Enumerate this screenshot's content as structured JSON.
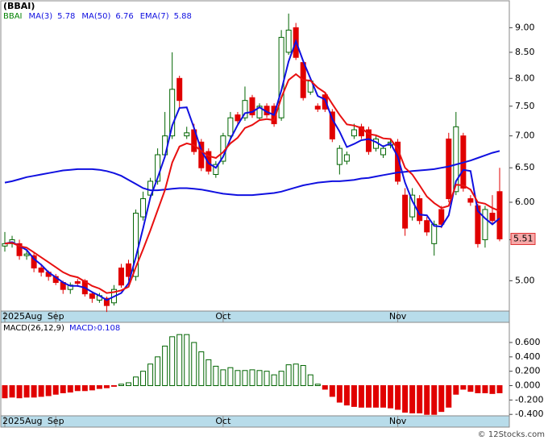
{
  "chart_data": [
    {
      "type": "candlestick",
      "title": "(BBAI)",
      "symbol": "BBAI",
      "symbol_color": "#008000",
      "categories": [
        "2025Aug",
        null,
        null,
        null,
        null,
        null,
        null,
        "Sep",
        null,
        null,
        null,
        null,
        null,
        null,
        null,
        null,
        null,
        null,
        null,
        null,
        null,
        null,
        null,
        null,
        null,
        null,
        null,
        null,
        null,
        null,
        "Oct",
        null,
        null,
        null,
        null,
        null,
        null,
        null,
        null,
        null,
        null,
        null,
        null,
        null,
        null,
        null,
        null,
        null,
        null,
        null,
        null,
        null,
        null,
        null,
        "Nov",
        null,
        null,
        null,
        null,
        null,
        null,
        null,
        null,
        null,
        null,
        null,
        null,
        null,
        null
      ],
      "open": [
        5.42,
        5.45,
        5.45,
        5.3,
        5.3,
        5.15,
        5.1,
        5.05,
        4.98,
        4.9,
        4.99,
        5.0,
        4.85,
        4.78,
        4.8,
        4.75,
        5.15,
        5.2,
        5.05,
        5.8,
        6.1,
        6.3,
        6.7,
        7.0,
        8.0,
        7.0,
        7.1,
        6.9,
        6.75,
        6.4,
        6.6,
        7.0,
        7.35,
        7.3,
        7.65,
        7.3,
        7.5,
        7.5,
        7.3,
        8.5,
        9.0,
        8.3,
        7.75,
        7.5,
        7.7,
        7.4,
        6.55,
        6.6,
        7.0,
        7.15,
        7.1,
        6.8,
        6.7,
        6.85,
        6.9,
        6.1,
        5.8,
        6.05,
        5.75,
        5.45,
        5.9,
        6.95,
        6.15,
        7.0,
        6.05,
        5.95,
        5.5,
        5.85,
        6.15
      ],
      "high": [
        5.6,
        5.55,
        5.5,
        5.38,
        5.33,
        5.2,
        5.12,
        5.08,
        5.0,
        4.98,
        5.02,
        5.02,
        4.88,
        4.86,
        4.82,
        4.95,
        5.2,
        5.25,
        5.9,
        6.15,
        6.35,
        6.8,
        7.4,
        8.5,
        8.05,
        7.15,
        7.2,
        6.95,
        6.8,
        6.6,
        7.05,
        7.4,
        7.4,
        7.85,
        7.7,
        7.55,
        7.55,
        7.55,
        8.95,
        9.3,
        9.1,
        8.35,
        8.0,
        7.55,
        7.75,
        7.45,
        6.85,
        6.75,
        7.2,
        7.2,
        7.15,
        7.0,
        6.85,
        6.95,
        6.95,
        6.2,
        6.2,
        6.1,
        5.8,
        5.75,
        5.95,
        7.05,
        7.4,
        7.05,
        6.1,
        5.98,
        5.95,
        6.1,
        6.5
      ],
      "low": [
        5.35,
        5.4,
        5.25,
        5.25,
        5.1,
        5.05,
        5.0,
        4.95,
        4.85,
        4.85,
        4.93,
        4.82,
        4.75,
        4.75,
        4.65,
        4.72,
        4.92,
        5.0,
        5.0,
        5.75,
        6.05,
        6.25,
        6.65,
        6.95,
        7.45,
        6.95,
        6.7,
        6.45,
        6.4,
        6.35,
        6.55,
        6.95,
        7.2,
        7.25,
        7.3,
        7.25,
        7.3,
        7.15,
        7.25,
        8.45,
        8.35,
        7.6,
        7.7,
        7.4,
        7.4,
        6.9,
        6.4,
        6.55,
        6.95,
        6.95,
        6.7,
        6.75,
        6.65,
        6.8,
        6.25,
        5.55,
        5.75,
        5.7,
        5.55,
        5.3,
        5.65,
        6.0,
        6.1,
        6.15,
        5.95,
        5.4,
        5.4,
        5.7,
        5.48
      ],
      "close": [
        5.45,
        5.5,
        5.3,
        5.32,
        5.15,
        5.1,
        5.05,
        4.98,
        4.9,
        4.95,
        4.97,
        4.85,
        4.8,
        4.83,
        4.72,
        4.9,
        4.95,
        5.05,
        5.85,
        6.05,
        6.3,
        6.7,
        7.0,
        7.8,
        7.6,
        7.05,
        6.75,
        6.5,
        6.45,
        6.55,
        7.0,
        7.3,
        7.25,
        7.6,
        7.35,
        7.5,
        7.35,
        7.2,
        8.8,
        8.95,
        8.4,
        7.65,
        7.95,
        7.45,
        7.45,
        6.95,
        6.8,
        6.7,
        7.1,
        7.0,
        6.75,
        6.95,
        6.8,
        6.9,
        6.3,
        5.65,
        6.1,
        5.75,
        5.6,
        5.7,
        5.7,
        6.05,
        7.15,
        6.2,
        6.0,
        5.45,
        5.9,
        5.75,
        5.51
      ],
      "up_color": "#006400",
      "down_color": "#e00000",
      "series": [
        {
          "name": "MA(3)",
          "color": "#1010e0",
          "values": [
            5.45,
            5.47,
            5.42,
            5.37,
            5.26,
            5.19,
            5.1,
            5.04,
            4.98,
            4.94,
            4.94,
            4.92,
            4.87,
            4.83,
            4.78,
            4.82,
            4.86,
            4.97,
            5.28,
            5.65,
            6.07,
            6.35,
            6.67,
            7.17,
            7.47,
            7.48,
            7.13,
            6.77,
            6.57,
            6.5,
            6.67,
            6.95,
            7.18,
            7.38,
            7.4,
            7.48,
            7.4,
            7.35,
            7.78,
            8.32,
            8.72,
            8.33,
            8.0,
            7.68,
            7.62,
            7.28,
            7.07,
            6.82,
            6.87,
            6.93,
            6.95,
            6.9,
            6.83,
            6.88,
            6.67,
            6.28,
            6.02,
            5.83,
            5.82,
            5.68,
            5.67,
            5.82,
            6.3,
            6.47,
            6.45,
            5.88,
            5.78,
            5.7,
            5.78
          ]
        },
        {
          "name": "MA(50)",
          "color": "#1010e0",
          "values": [
            6.28,
            6.3,
            6.33,
            6.36,
            6.38,
            6.4,
            6.42,
            6.44,
            6.46,
            6.47,
            6.48,
            6.48,
            6.48,
            6.47,
            6.45,
            6.42,
            6.38,
            6.32,
            6.26,
            6.2,
            6.17,
            6.17,
            6.18,
            6.19,
            6.2,
            6.2,
            6.19,
            6.18,
            6.16,
            6.14,
            6.12,
            6.11,
            6.1,
            6.1,
            6.1,
            6.11,
            6.12,
            6.13,
            6.15,
            6.18,
            6.21,
            6.24,
            6.26,
            6.28,
            6.29,
            6.3,
            6.3,
            6.31,
            6.32,
            6.34,
            6.35,
            6.37,
            6.39,
            6.41,
            6.43,
            6.44,
            6.45,
            6.46,
            6.47,
            6.48,
            6.5,
            6.52,
            6.55,
            6.58,
            6.61,
            6.65,
            6.69,
            6.73,
            6.76
          ]
        },
        {
          "name": "EMA(7)",
          "color": "#e81010",
          "values": [
            5.45,
            5.46,
            5.42,
            5.4,
            5.34,
            5.28,
            5.22,
            5.16,
            5.1,
            5.06,
            5.04,
            4.99,
            4.94,
            4.91,
            4.86,
            4.87,
            4.89,
            4.93,
            5.16,
            5.38,
            5.62,
            5.89,
            6.17,
            6.58,
            6.83,
            6.88,
            6.85,
            6.76,
            6.68,
            6.65,
            6.74,
            6.88,
            6.97,
            7.13,
            7.18,
            7.26,
            7.28,
            7.26,
            7.65,
            7.97,
            8.08,
            7.97,
            7.96,
            7.83,
            7.74,
            7.54,
            7.35,
            7.19,
            7.17,
            7.13,
            7.03,
            7.01,
            6.96,
            6.95,
            6.79,
            6.5,
            6.4,
            6.24,
            6.08,
            5.99,
            5.92,
            5.95,
            6.25,
            6.24,
            6.18,
            6.0,
            5.98,
            5.92,
            5.88
          ]
        }
      ],
      "ylim": [
        4.66,
        9.58
      ],
      "log": true,
      "yticks": [
        {
          "value": 5,
          "label": "5.00"
        },
        {
          "value": 5.5,
          "label": "5.50"
        },
        {
          "value": 6,
          "label": "6.00"
        },
        {
          "value": 6.5,
          "label": "6.50"
        },
        {
          "value": 7,
          "label": "7.00"
        },
        {
          "value": 7.5,
          "label": "7.50"
        },
        {
          "value": 8,
          "label": "8.00"
        },
        {
          "value": 8.5,
          "label": "8.50"
        },
        {
          "value": 9,
          "label": "9.00"
        }
      ]
    },
    {
      "type": "bar",
      "title": "MACD(26,12,9)",
      "value_title": "MACD:",
      "value": -0.108,
      "source": "© 12Stocks.com",
      "pos_color": "#006400",
      "neg_color": "#e00000",
      "values": [
        -0.17,
        -0.16,
        -0.17,
        -0.16,
        -0.16,
        -0.15,
        -0.14,
        -0.12,
        -0.1,
        -0.09,
        -0.07,
        -0.07,
        -0.06,
        -0.04,
        -0.03,
        -0.01,
        0.02,
        0.04,
        0.12,
        0.2,
        0.3,
        0.4,
        0.55,
        0.68,
        0.71,
        0.71,
        0.6,
        0.47,
        0.36,
        0.27,
        0.22,
        0.25,
        0.21,
        0.21,
        0.22,
        0.21,
        0.2,
        0.15,
        0.2,
        0.29,
        0.3,
        0.28,
        0.15,
        0.02,
        -0.05,
        -0.15,
        -0.23,
        -0.27,
        -0.29,
        -0.3,
        -0.3,
        -0.3,
        -0.3,
        -0.31,
        -0.33,
        -0.37,
        -0.38,
        -0.38,
        -0.4,
        -0.4,
        -0.36,
        -0.3,
        -0.12,
        -0.05,
        -0.08,
        -0.1,
        -0.1,
        -0.11,
        -0.1
      ],
      "ylim": [
        -0.42,
        0.88
      ],
      "yticks": [
        {
          "value": -0.4,
          "label": "-0.400"
        },
        {
          "value": -0.2,
          "label": "-0.200"
        },
        {
          "value": 0,
          "label": "0.000"
        },
        {
          "value": 0.2,
          "label": "0.200"
        },
        {
          "value": 0.4,
          "label": "0.400"
        },
        {
          "value": 0.6,
          "label": "0.600"
        }
      ]
    }
  ]
}
